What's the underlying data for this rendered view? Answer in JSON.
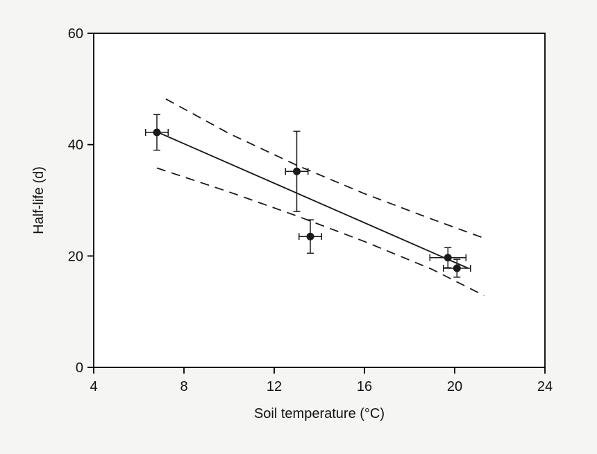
{
  "chart_data": {
    "type": "scatter",
    "title": "",
    "xlabel": "Soil temperature (°C)",
    "ylabel": "Half-life (d)",
    "xlim": [
      4,
      24
    ],
    "ylim": [
      0,
      60
    ],
    "xticks": [
      4,
      8,
      12,
      16,
      20,
      24
    ],
    "yticks": [
      0,
      20,
      40,
      60
    ],
    "grid": false,
    "legend": false,
    "points": [
      {
        "x": 6.8,
        "y": 42.2,
        "xerr": 0.5,
        "yerr": 3.2
      },
      {
        "x": 13.0,
        "y": 35.2,
        "xerr": 0.5,
        "yerr": 7.2
      },
      {
        "x": 13.6,
        "y": 23.5,
        "xerr": 0.5,
        "yerr": 3.0
      },
      {
        "x": 19.7,
        "y": 19.7,
        "xerr": 0.8,
        "yerr": 1.8
      },
      {
        "x": 20.1,
        "y": 17.8,
        "xerr": 0.6,
        "yerr": 1.6
      }
    ],
    "fit_line": {
      "x1": 6.8,
      "y1": 42.3,
      "x2": 20.6,
      "y2": 17.8
    },
    "confidence_bands": {
      "upper": [
        [
          7.2,
          48.2
        ],
        [
          10,
          42.0
        ],
        [
          13,
          36.3
        ],
        [
          16,
          31.2
        ],
        [
          19,
          26.6
        ],
        [
          21.3,
          23.2
        ]
      ],
      "lower": [
        [
          6.8,
          35.8
        ],
        [
          10,
          31.5
        ],
        [
          13,
          27.2
        ],
        [
          16,
          22.6
        ],
        [
          19,
          17.6
        ],
        [
          21.3,
          12.9
        ]
      ]
    },
    "colors": {
      "marker": "#1a1a1a",
      "fit_line": "#1a1a1a",
      "band_line": "#1a1a1a",
      "frame": "#000000",
      "plot_bg": "#ffffff",
      "page_bg": "#f5f5f4"
    }
  }
}
